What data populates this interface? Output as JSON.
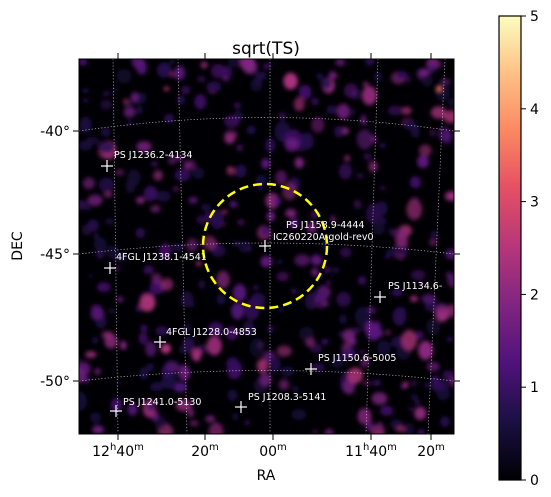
{
  "chart_data": {
    "type": "heatmap",
    "title": "sqrt(TS)",
    "xlabel": "RA",
    "ylabel": "DEC",
    "colormap": "magma",
    "colorbar": {
      "min": 0,
      "max": 5,
      "ticks": [
        "0",
        "1",
        "2",
        "3",
        "4",
        "5"
      ]
    },
    "x_ticks": [
      {
        "label": "12h40m",
        "hours": 12.667
      },
      {
        "label": "20m",
        "hours": 12.333
      },
      {
        "label": "00m",
        "hours": 12.0
      },
      {
        "label": "11h40m",
        "hours": 11.667
      },
      {
        "label": "20m",
        "hours": 11.333
      }
    ],
    "y_ticks": [
      {
        "label": "-40°",
        "dec": -40
      },
      {
        "label": "-45°",
        "dec": -45
      },
      {
        "label": "-50°",
        "dec": -50
      }
    ],
    "grid": true,
    "sources": [
      {
        "name": "PS J1236.2-4134"
      },
      {
        "name": "PS J1158.9-4444"
      },
      {
        "name": "4FGL J1238.1-4541"
      },
      {
        "name": "PS J1134.6-"
      },
      {
        "name": "4FGL J1228.0-4853"
      },
      {
        "name": "PS J1150.6-5005"
      },
      {
        "name": "PS J1241.0-5130"
      },
      {
        "name": "PS J1208.3-5141"
      }
    ],
    "event_label": "IC260220A-gold-rev0",
    "colors": {
      "circle": "#ffff00",
      "event_label": "#ffff00",
      "marker": "#ffffff",
      "background": "#000004"
    }
  }
}
